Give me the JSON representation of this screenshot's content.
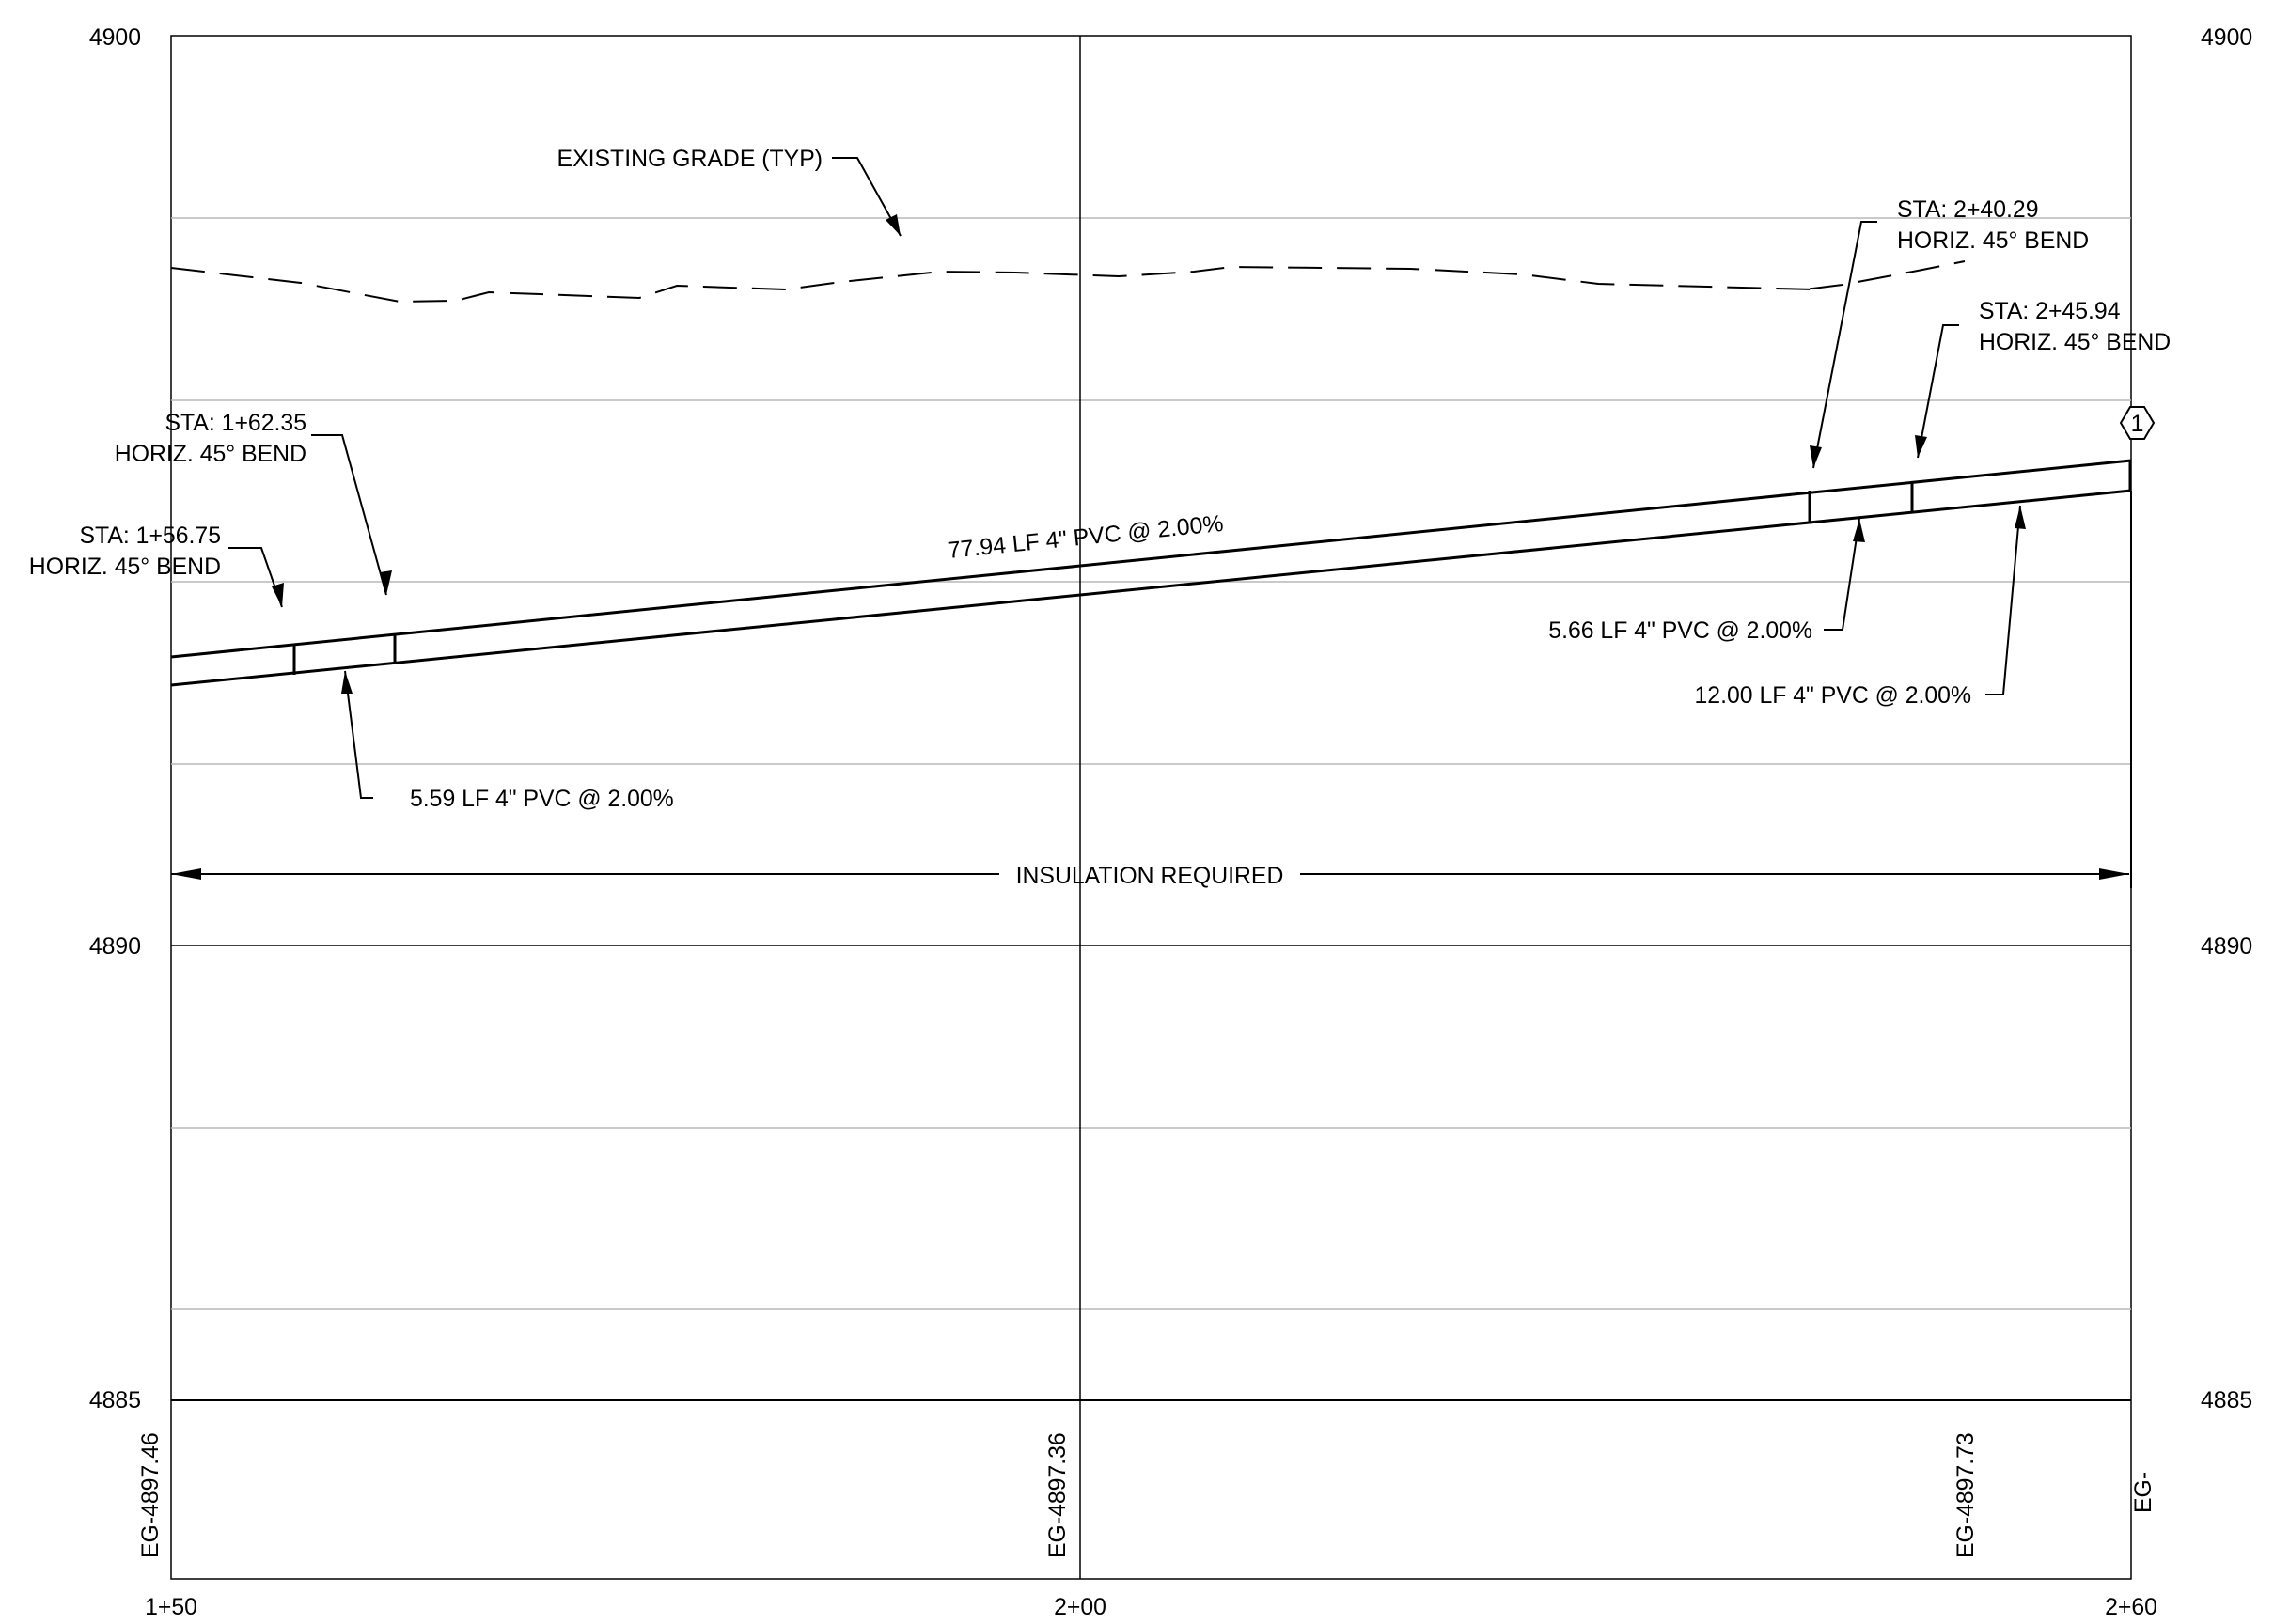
{
  "profile": {
    "elevation_labels": {
      "top_left": "4900",
      "top_right": "4900",
      "mid_left": "4890",
      "mid_right": "4890",
      "bottom_left": "4885",
      "bottom_right": "4885"
    },
    "station_labels": {
      "left": "1+50",
      "center": "2+00",
      "right": "2+60"
    },
    "eg_labels": {
      "sta_150": "EG-4897.46",
      "sta_200": "EG-4897.36",
      "sta_250": "EG-4897.73",
      "sta_260": "EG-"
    },
    "annotations": {
      "existing_grade": "EXISTING GRADE (TYP)",
      "bend_240_sta": "STA: 2+40.29",
      "bend_240_type": "HORIZ. 45° BEND",
      "bend_245_sta": "STA: 2+45.94",
      "bend_245_type": "HORIZ. 45° BEND",
      "bend_162_sta": "STA: 1+62.35",
      "bend_162_type": "HORIZ. 45° BEND",
      "bend_156_sta": "STA: 1+56.75",
      "bend_156_type": "HORIZ. 45° BEND",
      "pipe_main": "77.94 LF 4\" PVC @ 2.00%",
      "pipe_559": "5.59 LF 4\" PVC @ 2.00%",
      "pipe_566": "5.66 LF 4\" PVC @ 2.00%",
      "pipe_1200": "12.00 LF 4\" PVC @ 2.00%",
      "insulation": "INSULATION REQUIRED",
      "callout_number": "1"
    }
  }
}
